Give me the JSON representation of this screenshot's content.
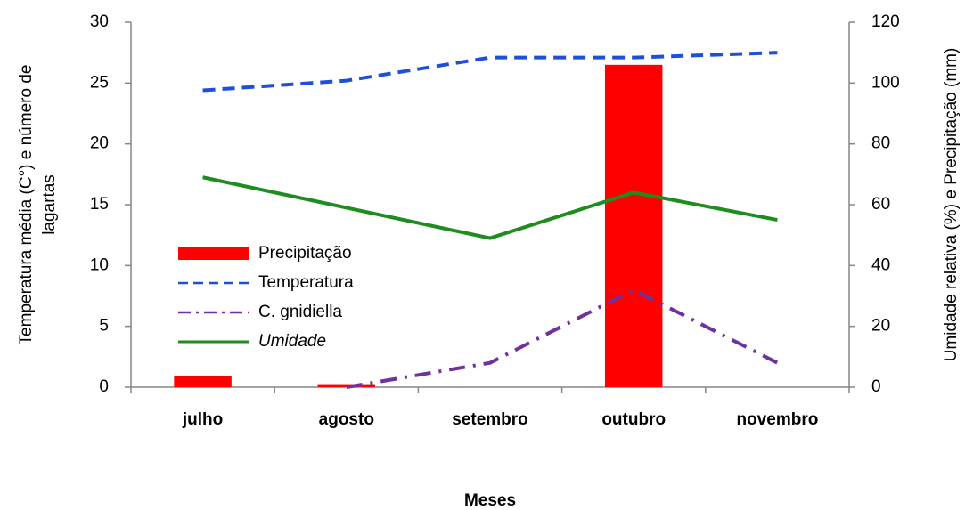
{
  "chart_data": {
    "type": "combo",
    "xlabel": "Meses",
    "ylabel": [
      "Temperatura média (C°) e número de",
      "lagartas"
    ],
    "y2label": "Umidade relativa (%) e Precipitação (mm)",
    "categories": [
      "julho",
      "agosto",
      "setembro",
      "outubro",
      "novembro"
    ],
    "ylim": [
      0,
      30
    ],
    "yticks": [
      0,
      5,
      10,
      15,
      20,
      25,
      30
    ],
    "y2lim": [
      0,
      120
    ],
    "y2ticks": [
      0,
      20,
      40,
      60,
      80,
      100,
      120
    ],
    "legend": "left",
    "series": [
      {
        "name": "Precipitação",
        "type": "bar",
        "axis": "y2",
        "color": "#ff0000",
        "values": [
          3.8,
          1,
          null,
          106,
          null
        ]
      },
      {
        "name": "Temperatura",
        "type": "line",
        "style": "dashed",
        "color": "#1f4fd8",
        "values": [
          24.4,
          25.2,
          27.1,
          27.1,
          27.5
        ]
      },
      {
        "name": "C. gnidiella",
        "type": "line",
        "style": "dashdot",
        "color": "#7030a0",
        "values": [
          null,
          0,
          2,
          8,
          2
        ]
      },
      {
        "name": "Umidade",
        "type": "line",
        "style": "solid",
        "axis": "y2",
        "color": "#1e8c1e",
        "values": [
          69,
          59,
          49,
          64,
          55
        ]
      }
    ]
  }
}
